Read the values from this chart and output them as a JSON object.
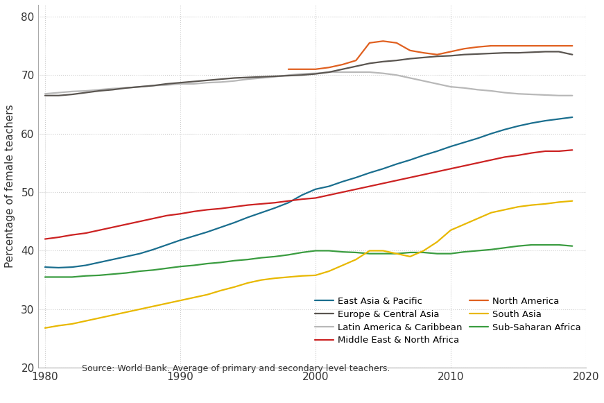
{
  "years": [
    1980,
    1981,
    1982,
    1983,
    1984,
    1985,
    1986,
    1987,
    1988,
    1989,
    1990,
    1991,
    1992,
    1993,
    1994,
    1995,
    1996,
    1997,
    1998,
    1999,
    2000,
    2001,
    2002,
    2003,
    2004,
    2005,
    2006,
    2007,
    2008,
    2009,
    2010,
    2011,
    2012,
    2013,
    2014,
    2015,
    2016,
    2017,
    2018,
    2019
  ],
  "series": {
    "East Asia & Pacific": {
      "color": "#1a6e8e",
      "values": [
        37.2,
        37.1,
        37.2,
        37.5,
        38.0,
        38.5,
        39.0,
        39.5,
        40.2,
        41.0,
        41.8,
        42.5,
        43.2,
        44.0,
        44.8,
        45.7,
        46.5,
        47.3,
        48.2,
        49.5,
        50.5,
        51.0,
        51.8,
        52.5,
        53.3,
        54.0,
        54.8,
        55.5,
        56.3,
        57.0,
        57.8,
        58.5,
        59.2,
        60.0,
        60.7,
        61.3,
        61.8,
        62.2,
        62.5,
        62.8
      ]
    },
    "Europe & Central Asia": {
      "color": "#5a5550",
      "values": [
        66.5,
        66.5,
        66.7,
        67.0,
        67.3,
        67.5,
        67.8,
        68.0,
        68.2,
        68.5,
        68.7,
        68.9,
        69.1,
        69.3,
        69.5,
        69.6,
        69.7,
        69.8,
        69.9,
        70.0,
        70.2,
        70.5,
        71.0,
        71.5,
        72.0,
        72.3,
        72.5,
        72.8,
        73.0,
        73.2,
        73.3,
        73.5,
        73.6,
        73.7,
        73.8,
        73.8,
        73.9,
        74.0,
        74.0,
        73.5
      ]
    },
    "Latin America & Caribbean": {
      "color": "#b8b8b8",
      "values": [
        66.8,
        67.0,
        67.2,
        67.3,
        67.5,
        67.7,
        67.8,
        68.0,
        68.2,
        68.3,
        68.5,
        68.5,
        68.7,
        68.8,
        69.0,
        69.3,
        69.5,
        69.7,
        70.0,
        70.2,
        70.3,
        70.5,
        70.5,
        70.5,
        70.5,
        70.3,
        70.0,
        69.5,
        69.0,
        68.5,
        68.0,
        67.8,
        67.5,
        67.3,
        67.0,
        66.8,
        66.7,
        66.6,
        66.5,
        66.5
      ]
    },
    "Middle East & North Africa": {
      "color": "#cc2222",
      "values": [
        42.0,
        42.3,
        42.7,
        43.0,
        43.5,
        44.0,
        44.5,
        45.0,
        45.5,
        46.0,
        46.3,
        46.7,
        47.0,
        47.2,
        47.5,
        47.8,
        48.0,
        48.2,
        48.5,
        48.8,
        49.0,
        49.5,
        50.0,
        50.5,
        51.0,
        51.5,
        52.0,
        52.5,
        53.0,
        53.5,
        54.0,
        54.5,
        55.0,
        55.5,
        56.0,
        56.3,
        56.7,
        57.0,
        57.0,
        57.2
      ]
    },
    "North America": {
      "color": "#e06020",
      "values": [
        null,
        null,
        null,
        null,
        null,
        null,
        null,
        null,
        null,
        null,
        null,
        null,
        null,
        null,
        null,
        null,
        null,
        null,
        71.0,
        71.0,
        71.0,
        71.3,
        71.8,
        72.5,
        75.5,
        75.8,
        75.5,
        74.2,
        73.8,
        73.5,
        74.0,
        74.5,
        74.8,
        75.0,
        75.0,
        75.0,
        75.0,
        75.0,
        75.0,
        75.0
      ]
    },
    "South Asia": {
      "color": "#e8b800",
      "values": [
        26.8,
        27.2,
        27.5,
        28.0,
        28.5,
        29.0,
        29.5,
        30.0,
        30.5,
        31.0,
        31.5,
        32.0,
        32.5,
        33.2,
        33.8,
        34.5,
        35.0,
        35.3,
        35.5,
        35.7,
        35.8,
        36.5,
        37.5,
        38.5,
        40.0,
        40.0,
        39.5,
        39.0,
        40.0,
        41.5,
        43.5,
        44.5,
        45.5,
        46.5,
        47.0,
        47.5,
        47.8,
        48.0,
        48.3,
        48.5
      ]
    },
    "Sub-Saharan Africa": {
      "color": "#3a9c40",
      "values": [
        35.5,
        35.5,
        35.5,
        35.7,
        35.8,
        36.0,
        36.2,
        36.5,
        36.7,
        37.0,
        37.3,
        37.5,
        37.8,
        38.0,
        38.3,
        38.5,
        38.8,
        39.0,
        39.3,
        39.7,
        40.0,
        40.0,
        39.8,
        39.7,
        39.5,
        39.5,
        39.5,
        39.7,
        39.7,
        39.5,
        39.5,
        39.8,
        40.0,
        40.2,
        40.5,
        40.8,
        41.0,
        41.0,
        41.0,
        40.8
      ]
    }
  },
  "ylabel": "Percentage of female teachers",
  "source_note": "Source: World Bank. Average of primary and secondary level teachers.",
  "ylim": [
    20,
    82
  ],
  "xlim": [
    1979.5,
    2020
  ],
  "yticks": [
    20,
    30,
    40,
    50,
    60,
    70,
    80
  ],
  "xticks": [
    1980,
    1990,
    2000,
    2010,
    2020
  ],
  "background_color": "#ffffff",
  "grid_color": "#cccccc",
  "linewidth": 1.6,
  "legend_cols_left": [
    "East Asia & Pacific",
    "Latin America & Caribbean",
    "North America",
    "Sub-Saharan Africa"
  ],
  "legend_cols_right": [
    "Europe & Central Asia",
    "Middle East & North Africa",
    "South Asia"
  ]
}
